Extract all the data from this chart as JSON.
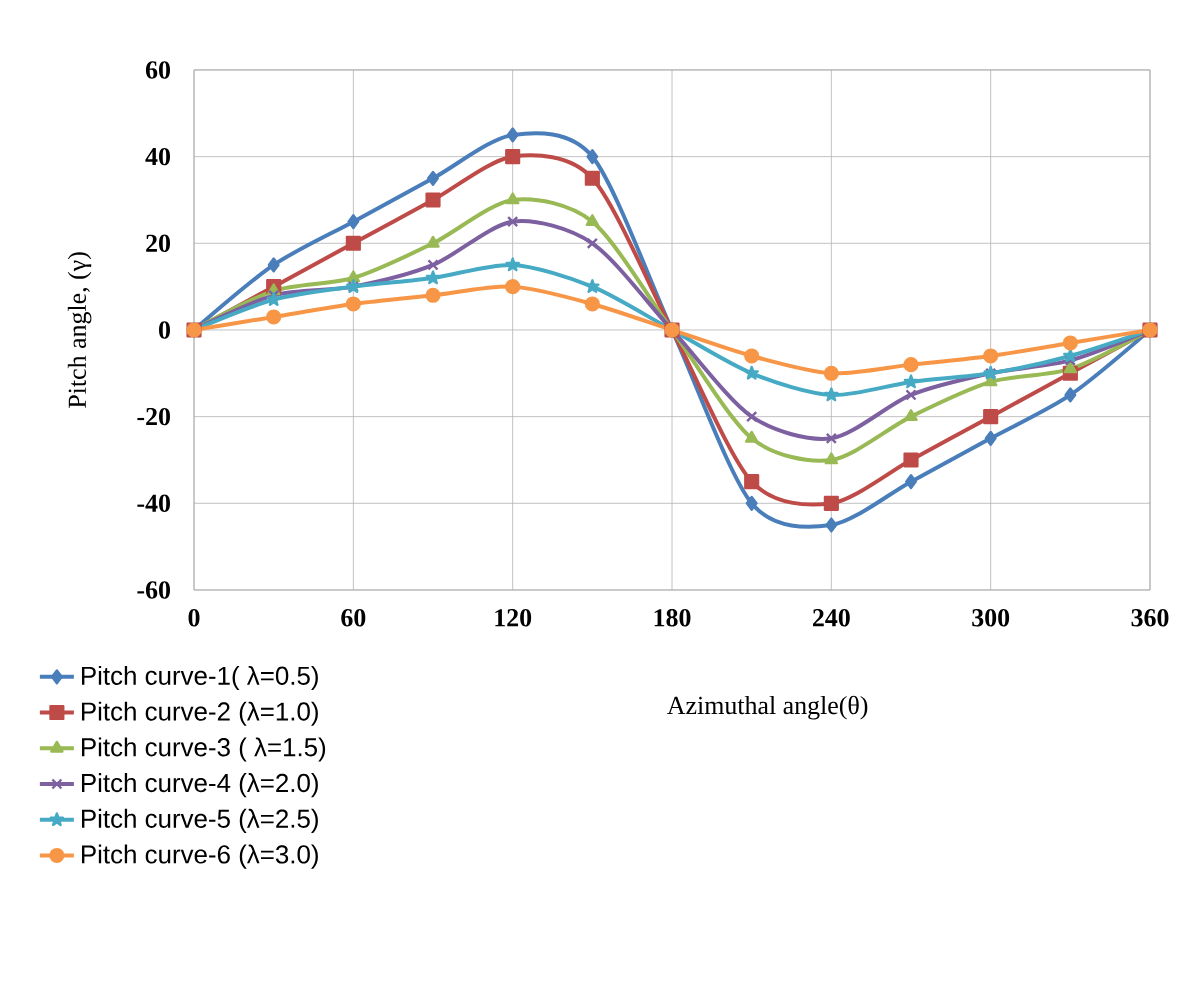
{
  "chart_data": {
    "type": "line",
    "xlabel": "Azimuthal angle(θ)",
    "ylabel": "Pitch angle, (γ)",
    "x": [
      0,
      30,
      60,
      90,
      120,
      150,
      180,
      210,
      240,
      270,
      300,
      330,
      360
    ],
    "xlim": [
      0,
      360
    ],
    "xticks": [
      0,
      60,
      120,
      180,
      240,
      300,
      360
    ],
    "ylim": [
      -60,
      60
    ],
    "yticks": [
      -60,
      -40,
      -20,
      0,
      20,
      40,
      60
    ],
    "grid": true,
    "legend": "bottom left",
    "line_style": "solid",
    "series": [
      {
        "name": "Pitch curve-1( λ=0.5)",
        "color": "#4a7ebb",
        "marker": "diamond",
        "values": [
          0,
          15,
          25,
          35,
          45,
          40,
          0,
          -40,
          -45,
          -35,
          -25,
          -15,
          0
        ]
      },
      {
        "name": "Pitch curve-2 (λ=1.0)",
        "color": "#be4b48",
        "marker": "square",
        "values": [
          0,
          10,
          20,
          30,
          40,
          35,
          0,
          -35,
          -40,
          -30,
          -20,
          -10,
          0
        ]
      },
      {
        "name": "Pitch curve-3 ( λ=1.5)",
        "color": "#98b954",
        "marker": "triangle",
        "values": [
          0,
          9,
          12,
          20,
          30,
          25,
          0,
          -25,
          -30,
          -20,
          -12,
          -9,
          0
        ]
      },
      {
        "name": "Pitch curve-4 (λ=2.0)",
        "color": "#7d60a0",
        "marker": "cross",
        "values": [
          0,
          8,
          10,
          15,
          25,
          20,
          0,
          -20,
          -25,
          -15,
          -10,
          -7,
          0
        ]
      },
      {
        "name": "Pitch curve-5 (λ=2.5)",
        "color": "#46aac5",
        "marker": "star",
        "values": [
          0,
          7,
          10,
          12,
          15,
          10,
          0,
          -10,
          -15,
          -12,
          -10,
          -6,
          0
        ]
      },
      {
        "name": "Pitch curve-6 (λ=3.0)",
        "color": "#f79646",
        "marker": "circle",
        "values": [
          0,
          3,
          6,
          8,
          10,
          6,
          0,
          -6,
          -10,
          -8,
          -6,
          -3,
          0
        ]
      }
    ]
  }
}
